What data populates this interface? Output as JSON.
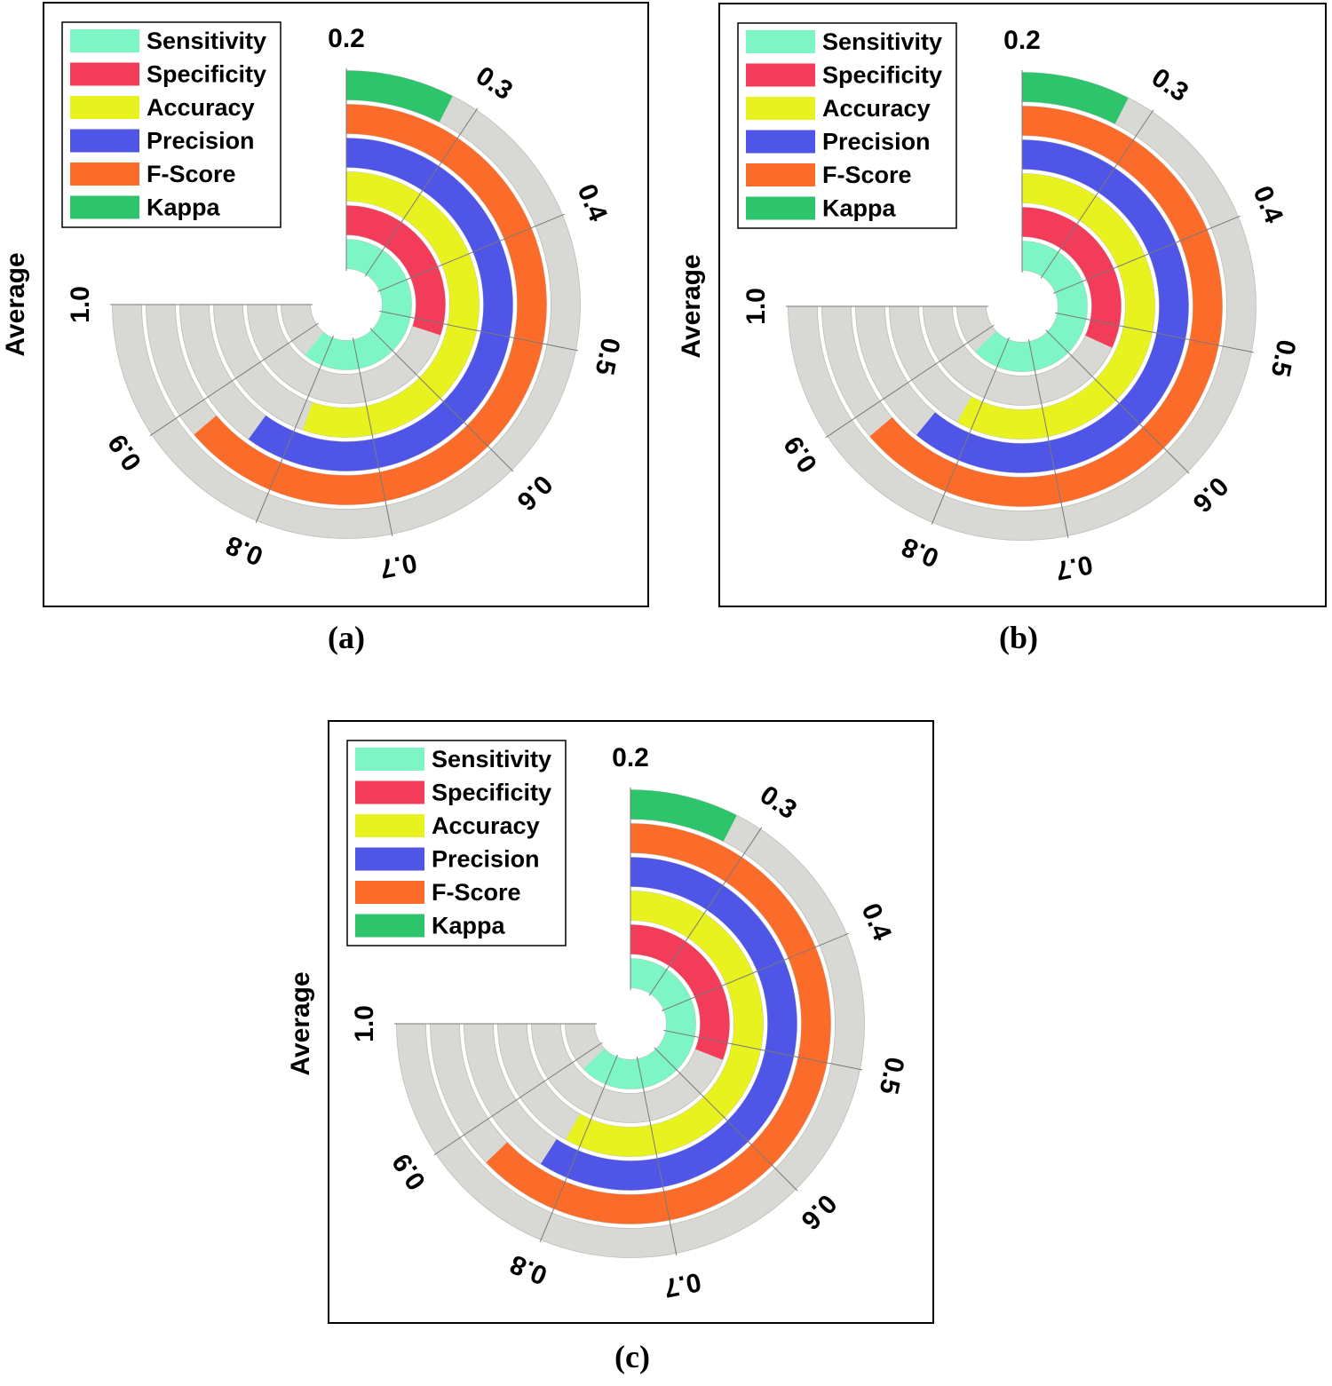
{
  "chart_data": [
    {
      "panel": "(a)",
      "type": "radial-bar",
      "ylabel": "Average",
      "axis_range": [
        0.2,
        1.0
      ],
      "ticks": [
        "0.2",
        "0.3",
        "0.4",
        "0.5",
        "0.6",
        "0.7",
        "0.8",
        "0.9",
        "1.0"
      ],
      "legend": [
        "Sensitivity",
        "Specificity",
        "Accuracy",
        "Precision",
        "F-Score",
        "Kappa"
      ],
      "series": [
        {
          "name": "Sensitivity",
          "value": 0.85,
          "color": "#7df5c4"
        },
        {
          "name": "Specificity",
          "value": 0.52,
          "color": "#f23c5a"
        },
        {
          "name": "Accuracy",
          "value": 0.79,
          "color": "#e8f21e"
        },
        {
          "name": "Precision",
          "value": 0.84,
          "color": "#4f55e6"
        },
        {
          "name": "F-Score",
          "value": 0.88,
          "color": "#fb6c2b"
        },
        {
          "name": "Kappa",
          "value": 0.28,
          "color": "#2ec46b"
        }
      ]
    },
    {
      "panel": "(b)",
      "type": "radial-bar",
      "ylabel": "Average",
      "axis_range": [
        0.2,
        1.0
      ],
      "ticks": [
        "0.2",
        "0.3",
        "0.4",
        "0.5",
        "0.6",
        "0.7",
        "0.8",
        "0.9",
        "1.0"
      ],
      "legend": [
        "Sensitivity",
        "Specificity",
        "Accuracy",
        "Precision",
        "F-Score",
        "Kappa"
      ],
      "series": [
        {
          "name": "Sensitivity",
          "value": 0.87,
          "color": "#7df5c4"
        },
        {
          "name": "Specificity",
          "value": 0.54,
          "color": "#f23c5a"
        },
        {
          "name": "Accuracy",
          "value": 0.82,
          "color": "#e8f21e"
        },
        {
          "name": "Precision",
          "value": 0.85,
          "color": "#4f55e6"
        },
        {
          "name": "F-Score",
          "value": 0.88,
          "color": "#fb6c2b"
        },
        {
          "name": "Kappa",
          "value": 0.28,
          "color": "#2ec46b"
        }
      ]
    },
    {
      "panel": "(c)",
      "type": "radial-bar",
      "ylabel": "Average",
      "axis_range": [
        0.2,
        1.0
      ],
      "ticks": [
        "0.2",
        "0.3",
        "0.4",
        "0.5",
        "0.6",
        "0.7",
        "0.8",
        "0.9",
        "1.0"
      ],
      "legend": [
        "Sensitivity",
        "Specificity",
        "Accuracy",
        "Precision",
        "F-Score",
        "Kappa"
      ],
      "series": [
        {
          "name": "Sensitivity",
          "value": 0.87,
          "color": "#7df5c4"
        },
        {
          "name": "Specificity",
          "value": 0.53,
          "color": "#f23c5a"
        },
        {
          "name": "Accuracy",
          "value": 0.82,
          "color": "#e8f21e"
        },
        {
          "name": "Precision",
          "value": 0.83,
          "color": "#4f55e6"
        },
        {
          "name": "F-Score",
          "value": 0.87,
          "color": "#fb6c2b"
        },
        {
          "name": "Kappa",
          "value": 0.28,
          "color": "#2ec46b"
        }
      ]
    }
  ],
  "style": {
    "track_color": "#d8d8d4",
    "frame_color": "#000000"
  }
}
